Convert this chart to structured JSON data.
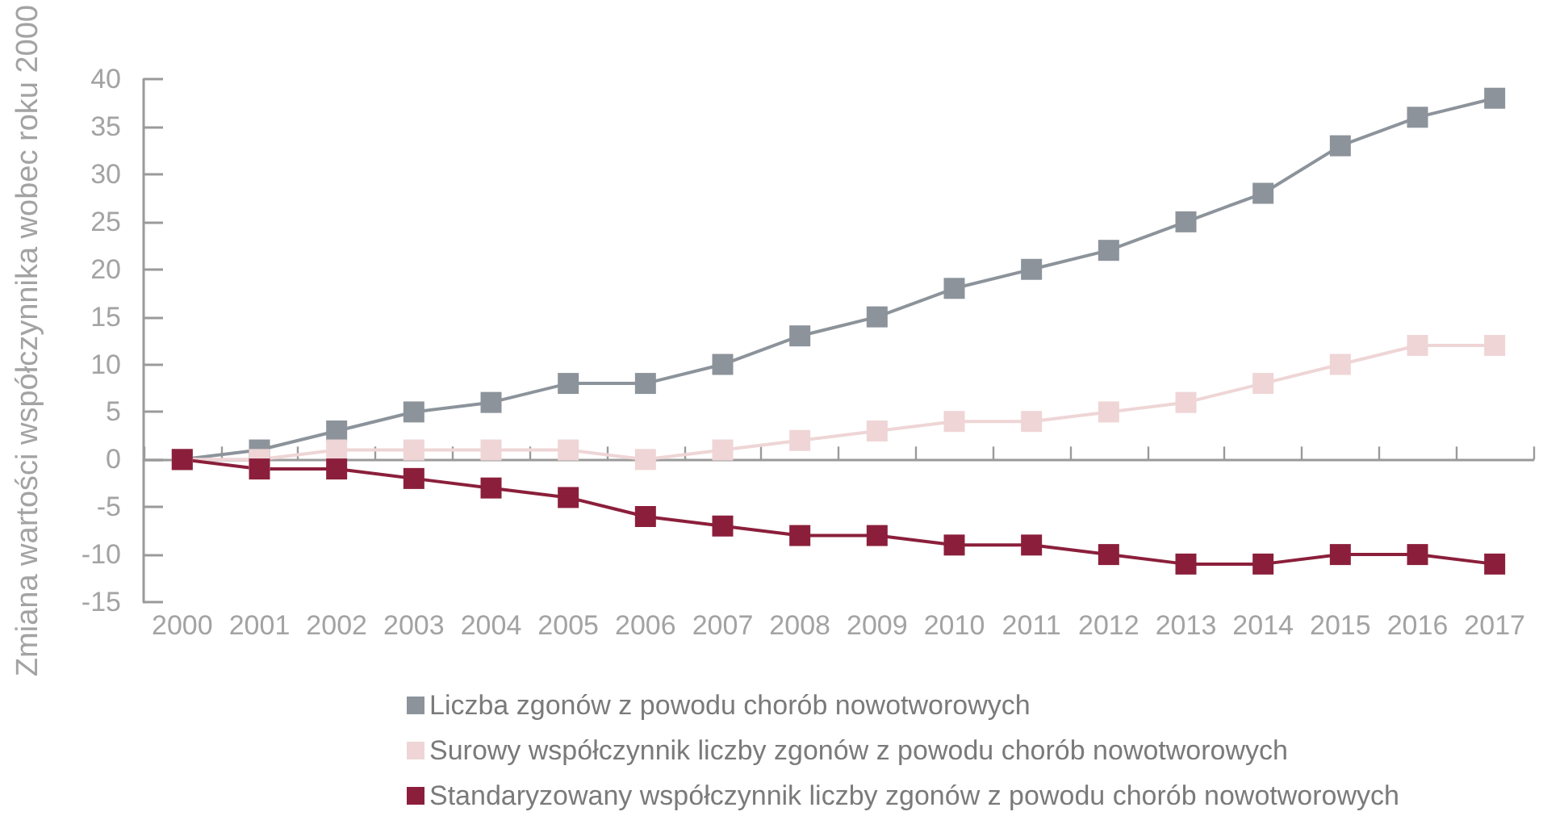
{
  "chart_data": {
    "type": "line",
    "ylabel": "Zmiana wartości współczynnika wobec roku 2000",
    "categories": [
      "2000",
      "2001",
      "2002",
      "2003",
      "2004",
      "2005",
      "2006",
      "2007",
      "2008",
      "2009",
      "2010",
      "2011",
      "2012",
      "2013",
      "2014",
      "2015",
      "2016",
      "2017"
    ],
    "series": [
      {
        "name": "Liczba zgonów z powodu chorób nowotworowych",
        "color": "#8c939b",
        "values": [
          0,
          1,
          3,
          5,
          6,
          8,
          8,
          10,
          13,
          15,
          18,
          20,
          22,
          25,
          28,
          33,
          36,
          38
        ]
      },
      {
        "name": "Surowy współczynnik liczby zgonów z powodu chorób nowotworowych",
        "color": "#efd5d6",
        "values": [
          0,
          0,
          1,
          1,
          1,
          1,
          0,
          1,
          2,
          3,
          4,
          4,
          5,
          6,
          8,
          10,
          12,
          12
        ]
      },
      {
        "name": "Standaryzowany współczynnik liczby zgonów z powodu chorób nowotworowych",
        "color": "#8b1f3b",
        "values": [
          0,
          -1,
          -1,
          -2,
          -3,
          -4,
          -6,
          -7,
          -8,
          -8,
          -9,
          -9,
          -10,
          -11,
          -11,
          -10,
          -10,
          -11
        ]
      }
    ],
    "ylim": [
      -15,
      40
    ],
    "yticks": [
      -15,
      -10,
      -5,
      0,
      5,
      10,
      15,
      20,
      25,
      30,
      35,
      40
    ],
    "legend": "bottom",
    "marker": "square",
    "line_style": "solid"
  }
}
